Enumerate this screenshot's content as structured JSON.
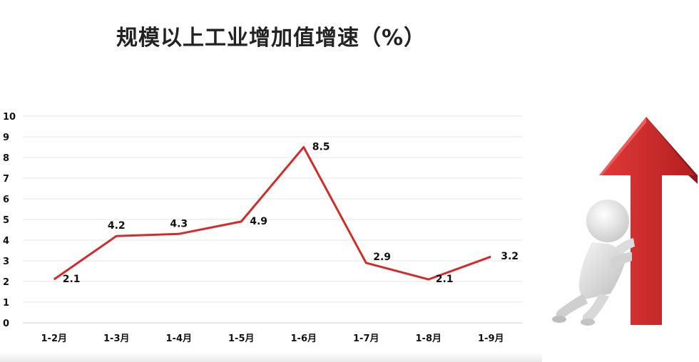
{
  "title": "规模以上工业增加值增速（%）",
  "chart_data": {
    "type": "line",
    "categories": [
      "1-2月",
      "1-3月",
      "1-4月",
      "1-5月",
      "1-6月",
      "1-7月",
      "1-8月",
      "1-9月"
    ],
    "values": [
      2.1,
      4.2,
      4.3,
      4.9,
      8.5,
      2.9,
      2.1,
      3.2
    ],
    "title": "规模以上工业增加值增速（%）",
    "ylim": [
      0,
      10
    ],
    "yticks": [
      0,
      1,
      2,
      3,
      4,
      5,
      6,
      7,
      8,
      9,
      10
    ],
    "grid": true,
    "line_color": "#d42a2a",
    "data_labels": [
      "2.1",
      "4.2",
      "4.3",
      "4.9",
      "8.5",
      "2.9",
      "2.1",
      "3.2"
    ]
  },
  "illustration": {
    "icon": "person-pushing-up-arrow-icon",
    "arrow_color": "#d12d2d"
  }
}
